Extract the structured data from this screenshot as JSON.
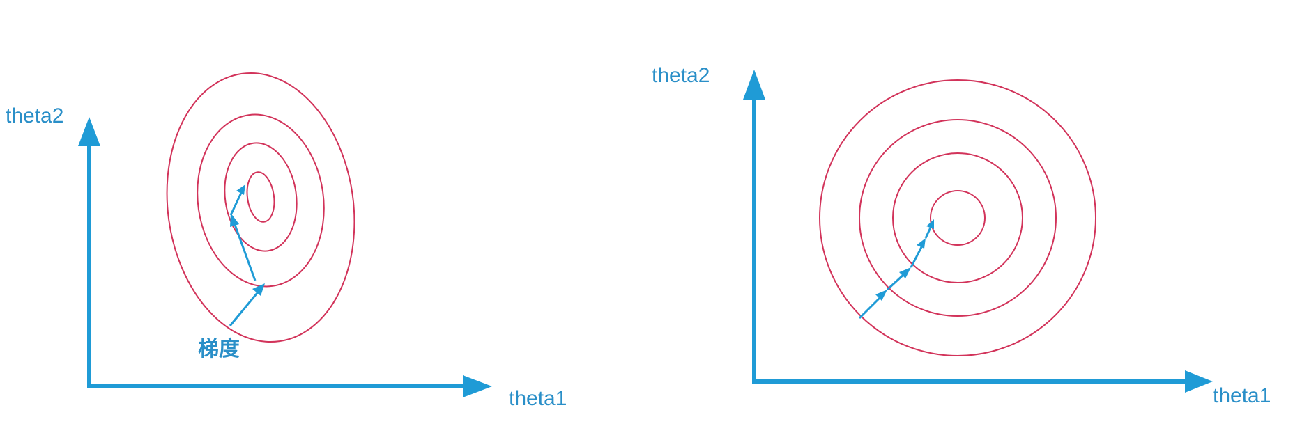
{
  "colors": {
    "axis": "#1f9bd6",
    "contour": "#d2335a",
    "arrow": "#1f9bd6",
    "text": "#2a8fc8",
    "background": "#ffffff"
  },
  "left_panel": {
    "y_axis_label": "theta2",
    "x_axis_label": "theta1",
    "gradient_label": "梯度",
    "contour_shape": "ellipse",
    "contour_count": 4,
    "gradient_steps": 3
  },
  "right_panel": {
    "y_axis_label": "theta2",
    "x_axis_label": "theta1",
    "contour_shape": "circle",
    "contour_count": 4,
    "gradient_steps": 4
  }
}
